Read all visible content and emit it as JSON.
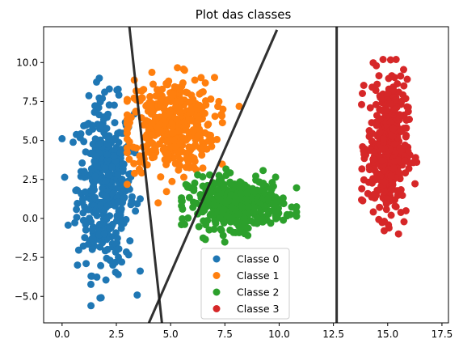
{
  "chart_data": {
    "type": "scatter",
    "title": "Plot das classes",
    "xlabel": "",
    "ylabel": "",
    "xlim": [
      -0.85,
      17.8
    ],
    "ylim": [
      -6.7,
      12.3
    ],
    "x_ticks": [
      0.0,
      2.5,
      5.0,
      7.5,
      10.0,
      12.5,
      15.0,
      17.5
    ],
    "x_tick_labels": [
      "0.0",
      "2.5",
      "5.0",
      "7.5",
      "10.0",
      "12.5",
      "15.0",
      "17.5"
    ],
    "y_ticks": [
      -5.0,
      -2.5,
      0.0,
      2.5,
      5.0,
      7.5,
      10.0
    ],
    "y_tick_labels": [
      "−5.0",
      "−2.5",
      "0.0",
      "2.5",
      "5.0",
      "7.5",
      "10.0"
    ],
    "grid": false,
    "legend_position": "bottom-center",
    "series": [
      {
        "name": "Classe 0",
        "color": "#1f77b4",
        "center": [
          2.0,
          2.0
        ],
        "spread": [
          0.65,
          2.7
        ],
        "x_range": [
          0.0,
          3.6
        ],
        "y_range": [
          -5.6,
          9.0
        ]
      },
      {
        "name": "Classe 1",
        "color": "#ff7f0e",
        "center": [
          5.0,
          6.0
        ],
        "spread": [
          1.0,
          1.5
        ],
        "x_range": [
          3.0,
          8.5
        ],
        "y_range": [
          1.0,
          11.0
        ]
      },
      {
        "name": "Classe 2",
        "color": "#2ca02c",
        "center": [
          8.0,
          1.0
        ],
        "spread": [
          1.1,
          0.8
        ],
        "x_range": [
          5.5,
          10.8
        ],
        "y_range": [
          -1.7,
          4.5
        ]
      },
      {
        "name": "Classe 3",
        "color": "#d62728",
        "center": [
          15.0,
          4.5
        ],
        "spread": [
          0.45,
          2.2
        ],
        "x_range": [
          13.8,
          16.8
        ],
        "y_range": [
          -2.4,
          10.2
        ]
      }
    ],
    "boundary_lines": [
      {
        "x1": 3.1,
        "y1": 12.3,
        "x2": 4.6,
        "y2": -6.7,
        "color": "#1a1a1a"
      },
      {
        "x1": 4.0,
        "y1": -6.7,
        "x2": 9.9,
        "y2": 12.1,
        "color": "#1a1a1a"
      },
      {
        "x1": 12.65,
        "y1": 12.3,
        "x2": 12.65,
        "y2": -6.7,
        "color": "#1a1a1a"
      }
    ]
  }
}
